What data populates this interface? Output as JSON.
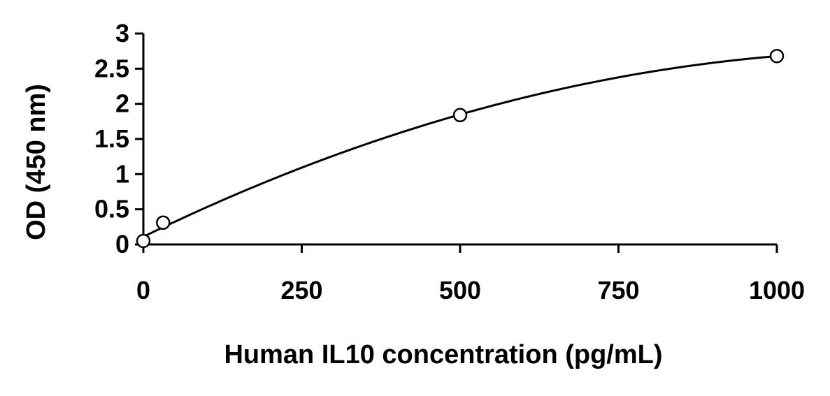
{
  "chart_data": {
    "type": "scatter",
    "title": "",
    "xlabel": "Human IL10 concentration (pg/mL)",
    "ylabel": "OD (450 nm)",
    "xlim": [
      0,
      1000
    ],
    "ylim": [
      0,
      3
    ],
    "x_ticks": [
      "0",
      "250",
      "500",
      "750",
      "1000"
    ],
    "y_ticks": [
      "0",
      "0.5",
      "1",
      "1.5",
      "2",
      "2.5",
      "3"
    ],
    "grid": false,
    "series": [
      {
        "x": [
          0,
          31.25,
          500,
          1000
        ],
        "y": [
          0.05,
          0.31,
          1.84,
          2.68
        ],
        "marker": "open-circle",
        "fit": "smooth-curve"
      }
    ],
    "colors": {
      "line": "#000000",
      "marker_fill": "#ffffff"
    }
  }
}
